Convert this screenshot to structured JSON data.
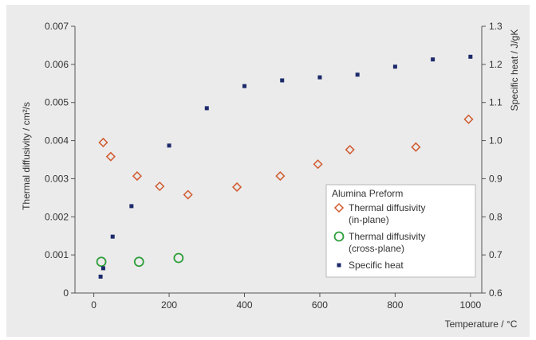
{
  "chart_data": {
    "type": "scatter",
    "title": "",
    "xlabel": "Temperature / °C",
    "ylabel_left": "Thermal diffusivity / cm²/s",
    "ylabel_right": "Specific heat / J/gK",
    "xlim": [
      -50,
      1030
    ],
    "ylim_left": [
      0,
      0.007
    ],
    "ylim_right": [
      0.6,
      1.3
    ],
    "x_ticks": [
      "0",
      "200",
      "400",
      "600",
      "800",
      "1000"
    ],
    "x_tick_values": [
      0,
      200,
      400,
      600,
      800,
      1000
    ],
    "y_left_ticks": [
      "0",
      "0.001",
      "0.002",
      "0.003",
      "0.004",
      "0.005",
      "0.006",
      "0.007"
    ],
    "y_left_tick_values": [
      0,
      0.001,
      0.002,
      0.003,
      0.004,
      0.005,
      0.006,
      0.007
    ],
    "y_right_ticks": [
      "0.6",
      "0.7",
      "0.8",
      "0.9",
      "1.0",
      "1.1",
      "1.2",
      "1.3"
    ],
    "y_right_tick_values": [
      0.6,
      0.7,
      0.8,
      0.9,
      1.0,
      1.1,
      1.2,
      1.3
    ],
    "grid": false,
    "legend_title": "Alumina Preform",
    "legend_position": "bottom-right",
    "series": [
      {
        "name": "Thermal diffusivity (in-plane)",
        "legend_lines": [
          "Thermal diffusivity",
          "(in-plane)"
        ],
        "axis": "left",
        "marker": "diamond",
        "color": "#d05a2e",
        "x": [
          25,
          45,
          115,
          175,
          250,
          380,
          495,
          595,
          680,
          855,
          995
        ],
        "y": [
          0.00395,
          0.00358,
          0.00307,
          0.0028,
          0.00258,
          0.00278,
          0.00307,
          0.00338,
          0.00376,
          0.00383,
          0.00456
        ]
      },
      {
        "name": "Thermal diffusivity (cross-plane)",
        "legend_lines": [
          "Thermal diffusivity",
          "(cross-plane)"
        ],
        "axis": "left",
        "marker": "circle",
        "color": "#2e9e3a",
        "x": [
          20,
          120,
          225
        ],
        "y": [
          0.00082,
          0.00082,
          0.00092
        ]
      },
      {
        "name": "Specific heat",
        "legend_lines": [
          "Specific heat"
        ],
        "axis": "right",
        "marker": "square",
        "color": "#1c2a6b",
        "x": [
          18,
          25,
          50,
          100,
          200,
          300,
          400,
          500,
          600,
          700,
          800,
          900,
          1000
        ],
        "y": [
          0.643,
          0.665,
          0.748,
          0.828,
          0.987,
          1.085,
          1.143,
          1.158,
          1.166,
          1.173,
          1.194,
          1.213,
          1.22
        ]
      }
    ]
  }
}
